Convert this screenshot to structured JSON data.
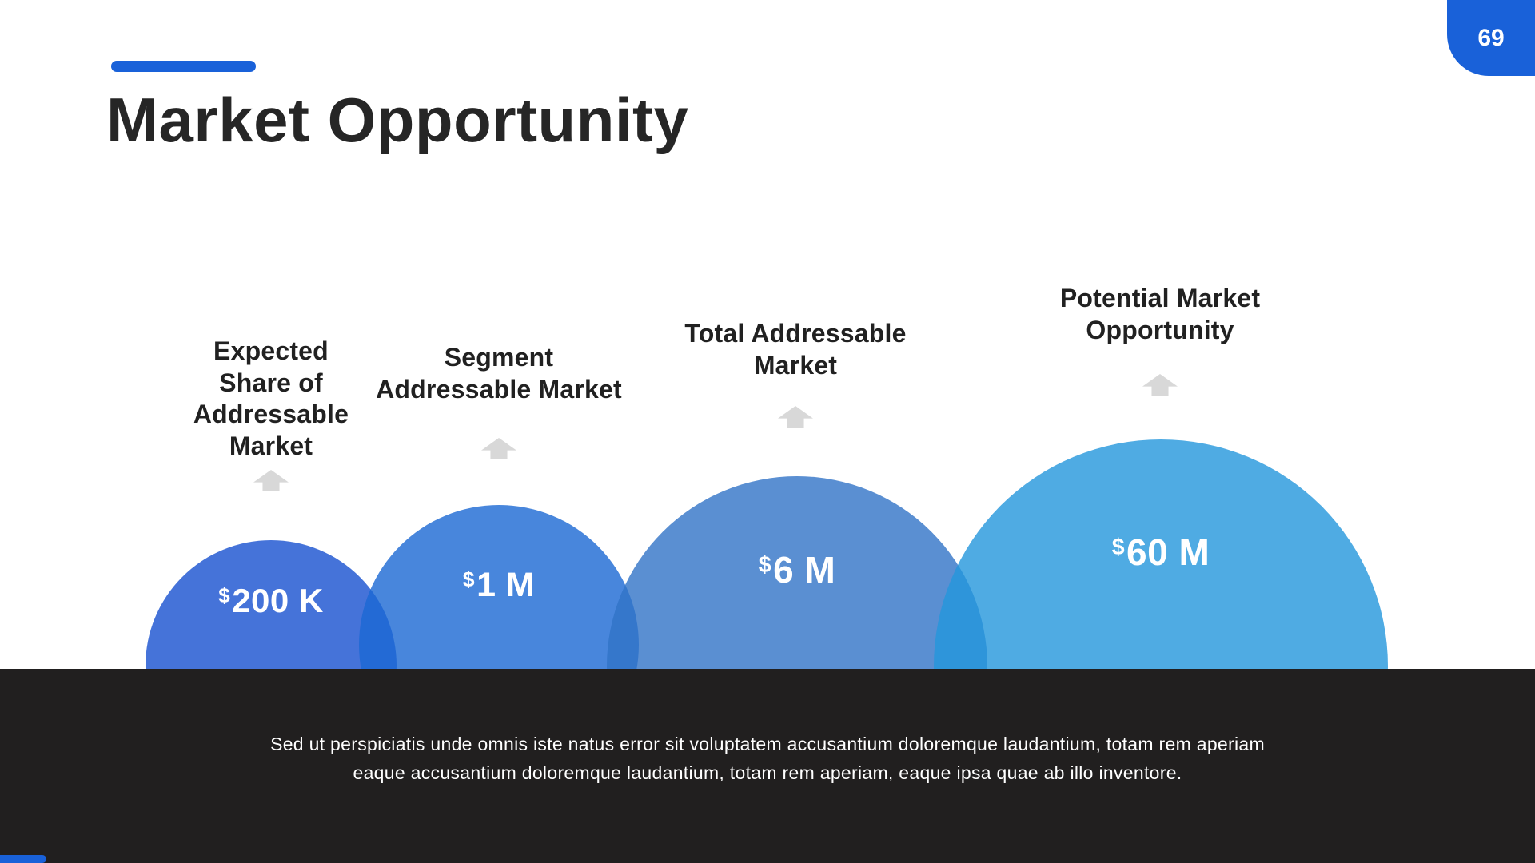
{
  "slide": {
    "page_number": "69",
    "title": "Market Opportunity",
    "accent_color": "#1961D9",
    "footer": {
      "background_color": "#211F1F",
      "lines": [
        "Sed ut perspiciatis unde omnis iste natus error sit voluptatem accusantium doloremque laudantium, totam rem aperiam",
        "eaque accusantium doloremque laudantium, totam rem aperiam, eaque ipsa quae ab illo inventore."
      ]
    }
  },
  "chart_data": {
    "type": "bubble",
    "title": "Market Opportunity",
    "categories": [
      "Expected Share of Addressable Market",
      "Segment Addressable Market",
      "Total Addressable Market",
      "Potential Market Opportunity"
    ],
    "values": [
      200000,
      1000000,
      6000000,
      60000000
    ],
    "value_labels": [
      "$200 K",
      "$1 M",
      "$6 M",
      "$60 M"
    ],
    "bubble_colors": [
      "#4573D9",
      "#4886DC",
      "#5A8FD2",
      "#4FABE3"
    ],
    "arrow_color": "#D8D8D8",
    "legend_position": "none",
    "items": [
      {
        "label": "Expected Share of Addressable Market",
        "label_display": "Expected\nShare of\nAddressable\nMarket",
        "currency": "$",
        "amount": "200 K"
      },
      {
        "label": "Segment Addressable Market",
        "label_display": "Segment\nAddressable Market",
        "currency": "$",
        "amount": "1 M"
      },
      {
        "label": "Total Addressable Market",
        "label_display": "Total Addressable\nMarket",
        "currency": "$",
        "amount": "6 M"
      },
      {
        "label": "Potential Market Opportunity",
        "label_display": "Potential Market\nOpportunity",
        "currency": "$",
        "amount": "60 M"
      }
    ]
  }
}
